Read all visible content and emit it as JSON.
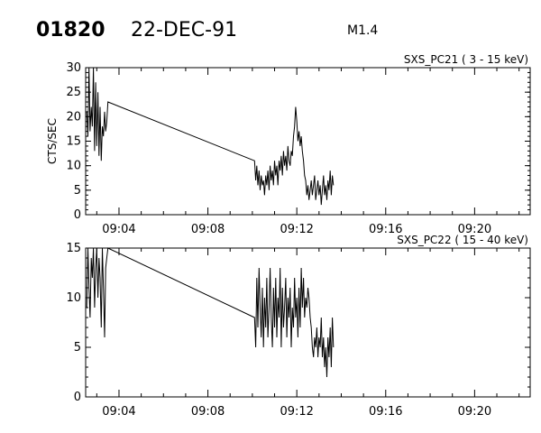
{
  "header": {
    "flare_id": "01820",
    "date": "22-DEC-91",
    "goes_class": "M1.4"
  },
  "chart_data": [
    {
      "type": "line",
      "title": "SXS_PC21  (  3 - 15 keV)",
      "ylabel": "CTS/SEC",
      "xlabel": "",
      "xlim": [
        "09:02:30",
        "09:22:30"
      ],
      "ylim": [
        0,
        30
      ],
      "yticks": [
        0,
        5,
        10,
        15,
        20,
        25,
        30
      ],
      "xticks": [
        "09:04",
        "09:08",
        "09:12",
        "09:16",
        "09:20"
      ],
      "series": [
        {
          "x": [
            "09:02:33",
            "09:02:36",
            "09:02:39",
            "09:02:42",
            "09:02:45",
            "09:02:48",
            "09:02:51",
            "09:02:54",
            "09:02:57",
            "09:03:00",
            "09:03:03",
            "09:03:06",
            "09:03:09",
            "09:03:12",
            "09:03:15",
            "09:03:18",
            "09:03:21",
            "09:03:24",
            "09:03:27",
            "09:03:30",
            "09:10:06",
            "09:10:09",
            "09:10:12",
            "09:10:15",
            "09:10:18",
            "09:10:21",
            "09:10:24",
            "09:10:27",
            "09:10:30",
            "09:10:33",
            "09:10:36",
            "09:10:39",
            "09:10:42",
            "09:10:45",
            "09:10:48",
            "09:10:51",
            "09:10:54",
            "09:10:57",
            "09:11:00",
            "09:11:03",
            "09:11:06",
            "09:11:09",
            "09:11:12",
            "09:11:15",
            "09:11:18",
            "09:11:21",
            "09:11:24",
            "09:11:27",
            "09:11:30",
            "09:11:33",
            "09:11:36",
            "09:11:39",
            "09:11:42",
            "09:11:45",
            "09:11:48",
            "09:11:51",
            "09:11:54",
            "09:11:57",
            "09:12:00",
            "09:12:03",
            "09:12:06",
            "09:12:09",
            "09:12:12",
            "09:12:15",
            "09:12:18",
            "09:12:21",
            "09:12:24",
            "09:12:27",
            "09:12:30",
            "09:12:33",
            "09:12:36",
            "09:12:39",
            "09:12:42",
            "09:12:45",
            "09:12:48",
            "09:12:51",
            "09:12:54",
            "09:12:57",
            "09:13:00",
            "09:13:03",
            "09:13:06",
            "09:13:09",
            "09:13:12",
            "09:13:15",
            "09:13:18",
            "09:13:21",
            "09:13:24",
            "09:13:27",
            "09:13:30",
            "09:13:33",
            "09:13:36",
            "09:13:39"
          ],
          "y": [
            21,
            16,
            30,
            17,
            22,
            18,
            30,
            13,
            27,
            14,
            25,
            12,
            22,
            11,
            18,
            16,
            21,
            17,
            19,
            23,
            11,
            7,
            10,
            6,
            9,
            5,
            8,
            6,
            7,
            4,
            8,
            6,
            9,
            5,
            10,
            7,
            9,
            6,
            11,
            8,
            10,
            6,
            11,
            9,
            12,
            8,
            13,
            10,
            12,
            9,
            14,
            11,
            10,
            13,
            12,
            16,
            18,
            22,
            19,
            15,
            17,
            14,
            16,
            13,
            11,
            8,
            7,
            4,
            6,
            3,
            5,
            7,
            4,
            6,
            8,
            3,
            5,
            7,
            4,
            6,
            2,
            5,
            8,
            4,
            6,
            3,
            7,
            5,
            9,
            4,
            8,
            6
          ]
        }
      ]
    },
    {
      "type": "line",
      "title": "SXS_PC22  ( 15 - 40 keV)",
      "ylabel": "",
      "xlabel": "",
      "xlim": [
        "09:02:30",
        "09:22:30"
      ],
      "ylim": [
        0,
        15
      ],
      "yticks": [
        0,
        5,
        10,
        15
      ],
      "xticks": [
        "09:04",
        "09:08",
        "09:12",
        "09:16",
        "09:20"
      ],
      "series": [
        {
          "x": [
            "09:02:33",
            "09:02:36",
            "09:02:39",
            "09:02:42",
            "09:02:45",
            "09:02:48",
            "09:02:51",
            "09:02:54",
            "09:02:57",
            "09:03:00",
            "09:03:03",
            "09:03:06",
            "09:03:09",
            "09:03:12",
            "09:03:15",
            "09:03:18",
            "09:03:21",
            "09:03:24",
            "09:03:27",
            "09:03:30",
            "09:10:06",
            "09:10:09",
            "09:10:12",
            "09:10:15",
            "09:10:18",
            "09:10:21",
            "09:10:24",
            "09:10:27",
            "09:10:30",
            "09:10:33",
            "09:10:36",
            "09:10:39",
            "09:10:42",
            "09:10:45",
            "09:10:48",
            "09:10:51",
            "09:10:54",
            "09:10:57",
            "09:11:00",
            "09:11:03",
            "09:11:06",
            "09:11:09",
            "09:11:12",
            "09:11:15",
            "09:11:18",
            "09:11:21",
            "09:11:24",
            "09:11:27",
            "09:11:30",
            "09:11:33",
            "09:11:36",
            "09:11:39",
            "09:11:42",
            "09:11:45",
            "09:11:48",
            "09:11:51",
            "09:11:54",
            "09:11:57",
            "09:12:00",
            "09:12:03",
            "09:12:06",
            "09:12:09",
            "09:12:12",
            "09:12:15",
            "09:12:18",
            "09:12:21",
            "09:12:24",
            "09:12:27",
            "09:12:30",
            "09:12:33",
            "09:12:36",
            "09:12:39",
            "09:12:42",
            "09:12:45",
            "09:12:48",
            "09:12:51",
            "09:12:54",
            "09:12:57",
            "09:13:00",
            "09:13:03",
            "09:13:06",
            "09:13:09",
            "09:13:12",
            "09:13:15",
            "09:13:18",
            "09:13:21",
            "09:13:24",
            "09:13:27",
            "09:13:30",
            "09:13:33",
            "09:13:36",
            "09:13:39"
          ],
          "y": [
            9,
            15,
            11,
            8,
            14,
            12,
            15,
            9,
            13,
            15,
            10,
            14,
            12,
            7,
            15,
            11,
            6,
            13,
            14,
            15,
            8,
            5,
            12,
            7,
            13,
            9,
            6,
            11,
            5,
            10,
            7,
            12,
            6,
            9,
            13,
            8,
            5,
            11,
            7,
            12,
            6,
            10,
            8,
            13,
            5,
            11,
            7,
            9,
            12,
            6,
            10,
            8,
            11,
            5,
            9,
            7,
            12,
            8,
            10,
            6,
            11,
            7,
            13,
            9,
            12,
            8,
            10,
            9,
            11,
            10,
            8,
            7,
            5,
            4,
            6,
            5,
            7,
            4,
            6,
            5,
            8,
            4,
            6,
            3,
            5,
            2,
            6,
            4,
            7,
            3,
            8,
            5
          ]
        }
      ]
    }
  ]
}
